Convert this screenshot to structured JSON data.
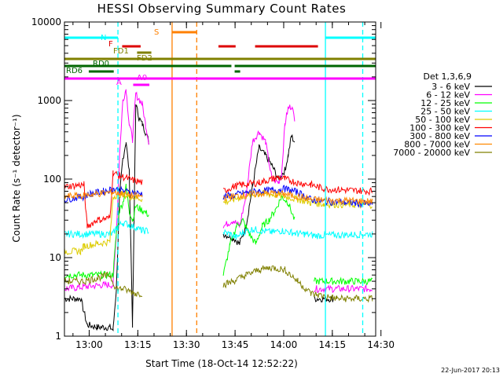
{
  "chart_data": {
    "type": "line",
    "title": "HESSI Observing Summary Count Rates",
    "xlabel": "Start Time (18-Oct-14 12:52:22)",
    "ylabel": "Count Rate (s⁻¹ detector⁻¹)",
    "xaxis": {
      "unit": "minutes since 12:52:22",
      "range": [
        0,
        96
      ],
      "ticks": [
        {
          "v": 7.63,
          "label": "13:00"
        },
        {
          "v": 22.63,
          "label": "13:15"
        },
        {
          "v": 37.63,
          "label": "13:30"
        },
        {
          "v": 52.63,
          "label": "13:45"
        },
        {
          "v": 67.63,
          "label": "14:00"
        },
        {
          "v": 82.63,
          "label": "14:15"
        },
        {
          "v": 97.63,
          "label": "14:30"
        }
      ]
    },
    "yaxis": {
      "scale": "log",
      "range": [
        1,
        10000
      ],
      "ticks": [
        {
          "v": 1,
          "label": "1"
        },
        {
          "v": 10,
          "label": "10"
        },
        {
          "v": 100,
          "label": "100"
        },
        {
          "v": 1000,
          "label": "1000"
        },
        {
          "v": 10000,
          "label": "10000"
        }
      ]
    },
    "legend": {
      "placement": "right",
      "header": "Det 1,3,6,9"
    },
    "series": [
      {
        "name": "3 - 6 keV",
        "color": "#000000",
        "points": [
          [
            0,
            3
          ],
          [
            5,
            3
          ],
          [
            7,
            1.4
          ],
          [
            10,
            1.3
          ],
          [
            14,
            1.3
          ],
          [
            15,
            1.2
          ],
          [
            16,
            4
          ],
          [
            17,
            60
          ],
          [
            18,
            180
          ],
          [
            19,
            300
          ],
          [
            20,
            120
          ],
          [
            21,
            1.4
          ],
          [
            22,
            900
          ],
          [
            23,
            600
          ],
          [
            24,
            500
          ],
          [
            25,
            400
          ],
          [
            26,
            300
          ],
          [
            28,
            null
          ],
          [
            49,
            20
          ],
          [
            52,
            18
          ],
          [
            54,
            15
          ],
          [
            56,
            25
          ],
          [
            58,
            80
          ],
          [
            60,
            250
          ],
          [
            62,
            200
          ],
          [
            64,
            150
          ],
          [
            66,
            100
          ],
          [
            68,
            130
          ],
          [
            69,
            200
          ],
          [
            70,
            350
          ],
          [
            71,
            300
          ],
          [
            72,
            null
          ],
          [
            77,
            3
          ],
          [
            83,
            3
          ]
        ]
      },
      {
        "name": "6 - 12 keV",
        "color": "#ff00ff",
        "points": [
          [
            0,
            4
          ],
          [
            12,
            4.5
          ],
          [
            15,
            4.5
          ],
          [
            16,
            20
          ],
          [
            17,
            200
          ],
          [
            18,
            1000
          ],
          [
            19,
            1400
          ],
          [
            20,
            500
          ],
          [
            21,
            320
          ],
          [
            22,
            1200
          ],
          [
            24,
            900
          ],
          [
            25,
            500
          ],
          [
            26,
            300
          ],
          [
            28,
            null
          ],
          [
            49,
            25
          ],
          [
            52,
            30
          ],
          [
            54,
            25
          ],
          [
            56,
            60
          ],
          [
            58,
            300
          ],
          [
            60,
            400
          ],
          [
            62,
            300
          ],
          [
            64,
            100
          ],
          [
            66,
            90
          ],
          [
            67,
            120
          ],
          [
            68,
            500
          ],
          [
            69,
            800
          ],
          [
            70,
            850
          ],
          [
            71,
            600
          ],
          [
            72,
            null
          ],
          [
            77,
            4
          ],
          [
            95,
            4
          ]
        ]
      },
      {
        "name": "12 - 25 keV",
        "color": "#00ff00",
        "points": [
          [
            0,
            6
          ],
          [
            15,
            6
          ],
          [
            16,
            20
          ],
          [
            17,
            40
          ],
          [
            18,
            50
          ],
          [
            19,
            80
          ],
          [
            20,
            40
          ],
          [
            21,
            30
          ],
          [
            22,
            45
          ],
          [
            24,
            40
          ],
          [
            26,
            35
          ],
          [
            28,
            null
          ],
          [
            49,
            6
          ],
          [
            51,
            14
          ],
          [
            53,
            25
          ],
          [
            55,
            30
          ],
          [
            57,
            20
          ],
          [
            59,
            15
          ],
          [
            61,
            25
          ],
          [
            63,
            30
          ],
          [
            65,
            40
          ],
          [
            67,
            60
          ],
          [
            69,
            50
          ],
          [
            71,
            30
          ],
          [
            72,
            null
          ],
          [
            77,
            5
          ],
          [
            95,
            5
          ]
        ]
      },
      {
        "name": "25 - 50 keV",
        "color": "#00ffff",
        "points": [
          [
            0,
            20
          ],
          [
            15,
            20
          ],
          [
            16,
            24
          ],
          [
            18,
            28
          ],
          [
            20,
            26
          ],
          [
            22,
            24
          ],
          [
            24,
            22
          ],
          [
            26,
            22
          ],
          [
            28,
            null
          ],
          [
            49,
            21
          ],
          [
            51,
            20
          ],
          [
            53,
            18
          ],
          [
            55,
            21
          ],
          [
            58,
            23
          ],
          [
            61,
            22
          ],
          [
            64,
            21
          ],
          [
            67,
            22
          ],
          [
            70,
            21
          ],
          [
            72,
            20
          ],
          [
            74,
            20
          ],
          [
            77,
            19
          ],
          [
            95,
            20
          ]
        ]
      },
      {
        "name": "50 - 100 keV",
        "color": "#ddcc00",
        "points": [
          [
            0,
            12
          ],
          [
            5,
            12
          ],
          [
            6,
            14
          ],
          [
            10,
            15
          ],
          [
            14,
            16
          ],
          [
            15,
            60
          ],
          [
            17,
            65
          ],
          [
            20,
            60
          ],
          [
            24,
            56
          ],
          [
            28,
            null
          ],
          [
            49,
            50
          ],
          [
            52,
            55
          ],
          [
            55,
            60
          ],
          [
            60,
            65
          ],
          [
            64,
            64
          ],
          [
            68,
            60
          ],
          [
            72,
            55
          ],
          [
            76,
            50
          ],
          [
            80,
            48
          ],
          [
            88,
            47
          ],
          [
            95,
            47
          ]
        ]
      },
      {
        "name": "100 - 300 keV",
        "color": "#ff0000",
        "points": [
          [
            0,
            80
          ],
          [
            6,
            85
          ],
          [
            7,
            25
          ],
          [
            10,
            30
          ],
          [
            14,
            32
          ],
          [
            15,
            120
          ],
          [
            17,
            110
          ],
          [
            20,
            100
          ],
          [
            24,
            90
          ],
          [
            28,
            null
          ],
          [
            49,
            70
          ],
          [
            52,
            80
          ],
          [
            55,
            85
          ],
          [
            60,
            90
          ],
          [
            64,
            100
          ],
          [
            66,
            105
          ],
          [
            68,
            100
          ],
          [
            72,
            90
          ],
          [
            76,
            85
          ],
          [
            80,
            75
          ],
          [
            88,
            72
          ],
          [
            95,
            70
          ]
        ]
      },
      {
        "name": "300 - 800 keV",
        "color": "#0000ff",
        "points": [
          [
            0,
            55
          ],
          [
            6,
            60
          ],
          [
            8,
            65
          ],
          [
            12,
            70
          ],
          [
            15,
            75
          ],
          [
            17,
            72
          ],
          [
            20,
            68
          ],
          [
            24,
            65
          ],
          [
            28,
            null
          ],
          [
            49,
            60
          ],
          [
            52,
            62
          ],
          [
            55,
            66
          ],
          [
            60,
            70
          ],
          [
            64,
            72
          ],
          [
            68,
            75
          ],
          [
            72,
            68
          ],
          [
            76,
            55
          ],
          [
            80,
            52
          ],
          [
            88,
            50
          ],
          [
            95,
            48
          ]
        ]
      },
      {
        "name": "800 - 7000 keV",
        "color": "#ff8800",
        "points": [
          [
            0,
            60
          ],
          [
            6,
            62
          ],
          [
            10,
            65
          ],
          [
            15,
            68
          ],
          [
            17,
            66
          ],
          [
            20,
            62
          ],
          [
            24,
            60
          ],
          [
            28,
            null
          ],
          [
            49,
            58
          ],
          [
            52,
            60
          ],
          [
            55,
            62
          ],
          [
            60,
            65
          ],
          [
            64,
            66
          ],
          [
            68,
            64
          ],
          [
            72,
            60
          ],
          [
            76,
            55
          ],
          [
            80,
            54
          ],
          [
            88,
            53
          ],
          [
            95,
            52
          ]
        ]
      },
      {
        "name": "7000 - 20000 keV",
        "color": "#808000",
        "points": [
          [
            0,
            5
          ],
          [
            6,
            5
          ],
          [
            10,
            5.5
          ],
          [
            14,
            6
          ],
          [
            16,
            4
          ],
          [
            18,
            4
          ],
          [
            22,
            3.5
          ],
          [
            24,
            3.5
          ],
          [
            28,
            null
          ],
          [
            49,
            4.5
          ],
          [
            52,
            5
          ],
          [
            56,
            6
          ],
          [
            60,
            7
          ],
          [
            64,
            7.5
          ],
          [
            68,
            7
          ],
          [
            72,
            5
          ],
          [
            76,
            3.5
          ],
          [
            84,
            3
          ],
          [
            95,
            3
          ]
        ]
      }
    ],
    "state_bars": [
      {
        "label": "N",
        "color": "#00ffff",
        "segments": [
          [
            0,
            16.5
          ],
          [
            80.5,
            96
          ]
        ]
      },
      {
        "label": "S",
        "color": "#ff8000",
        "segments": [
          [
            33.2,
            40.8
          ]
        ]
      },
      {
        "label": "F",
        "color": "#dd0000",
        "segments": [
          [
            17.8,
            23.5
          ],
          [
            47.5,
            52.8
          ],
          [
            58.8,
            78.2
          ]
        ]
      },
      {
        "label": "FD1",
        "color": "#808000",
        "segments": [
          [
            22.4,
            26.8
          ]
        ]
      },
      {
        "label": "FD2",
        "color": "#808000",
        "segments": [
          [
            0,
            96
          ]
        ]
      },
      {
        "label": "RD0",
        "color": "#006600",
        "segments": [
          [
            0,
            51.5
          ],
          [
            52.5,
            96
          ]
        ]
      },
      {
        "label": "RD6",
        "color": "#006600",
        "segments": [
          [
            7.5,
            15.2
          ],
          [
            52.5,
            54.2
          ]
        ]
      },
      {
        "label": "A",
        "color": "#ff00ff",
        "segments": [
          [
            0,
            96
          ]
        ]
      },
      {
        "label": "A0",
        "color": "#ff00ff",
        "segments": [
          [
            21.2,
            26.2
          ]
        ]
      }
    ],
    "vertical_markers": [
      {
        "x": 16.5,
        "color": "#00ffff",
        "style": "dashed"
      },
      {
        "x": 33.2,
        "color": "#ff8000",
        "style": "solid"
      },
      {
        "x": 40.8,
        "color": "#ff8000",
        "style": "dashed"
      },
      {
        "x": 80.5,
        "color": "#00ffff",
        "style": "solid"
      },
      {
        "x": 92.0,
        "color": "#00ffff",
        "style": "dashed"
      }
    ]
  },
  "footer": {
    "date_stamp": "22-Jun-2017 20:13"
  }
}
